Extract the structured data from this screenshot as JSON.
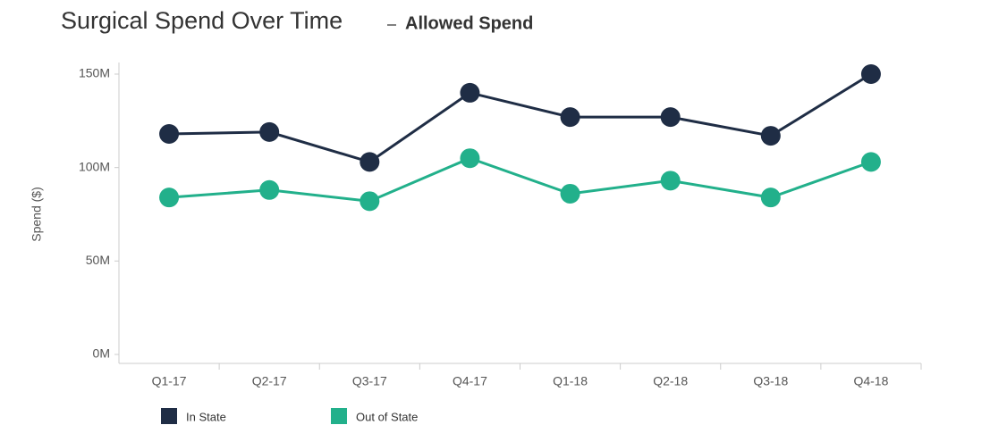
{
  "chart_data": {
    "type": "line",
    "title": "Surgical Spend Over Time",
    "subtitle": "Allowed Spend",
    "y_label": "Spend ($)",
    "categories": [
      "Q1-17",
      "Q2-17",
      "Q3-17",
      "Q4-17",
      "Q1-18",
      "Q2-18",
      "Q3-18",
      "Q4-18"
    ],
    "series": [
      {
        "name": "In State",
        "color": "#1f2d45",
        "values": [
          118,
          119,
          103,
          140,
          127,
          127,
          117,
          150
        ]
      },
      {
        "name": "Out of State",
        "color": "#22b08b",
        "values": [
          84,
          88,
          82,
          105,
          86,
          93,
          84,
          103
        ]
      }
    ],
    "ylim": [
      0,
      150
    ],
    "yticks": [
      {
        "value": 0,
        "label": "0M"
      },
      {
        "value": 50,
        "label": "50M"
      },
      {
        "value": 100,
        "label": "100M"
      },
      {
        "value": 150,
        "label": "150M"
      }
    ],
    "grid": false,
    "legend": "bottom"
  }
}
